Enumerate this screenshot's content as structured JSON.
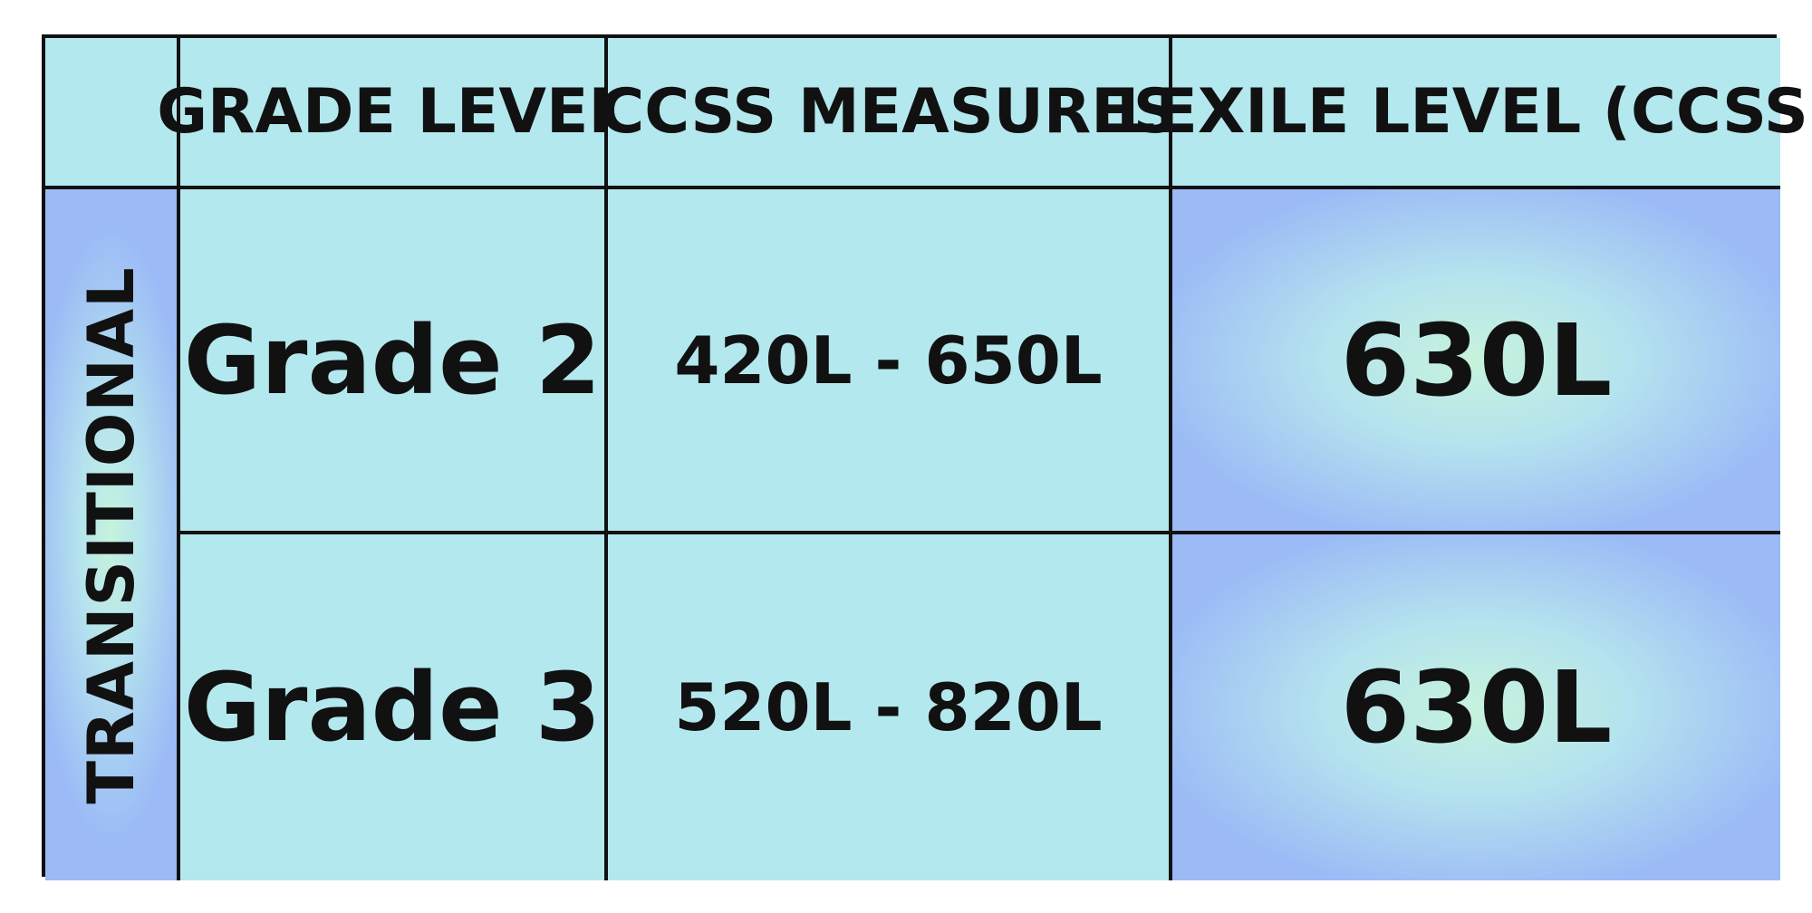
{
  "header": {
    "corner": "",
    "col_grade": "GRADE LEVEL",
    "col_ccss": "CCSS MEASURES",
    "col_lexile": "LEXILE LEVEL (CCSS)"
  },
  "side_label": "TRANSITIONAL",
  "rows": [
    {
      "grade": "Grade 2",
      "ccss": "420L - 650L",
      "lexile": "630L"
    },
    {
      "grade": "Grade 3",
      "ccss": "520L - 820L",
      "lexile": "630L"
    }
  ],
  "colors": {
    "cell_bg": "#b3e8ee",
    "gradient_center": "#c6f3dc",
    "gradient_edge": "#9bbaf6",
    "border": "#111111"
  }
}
